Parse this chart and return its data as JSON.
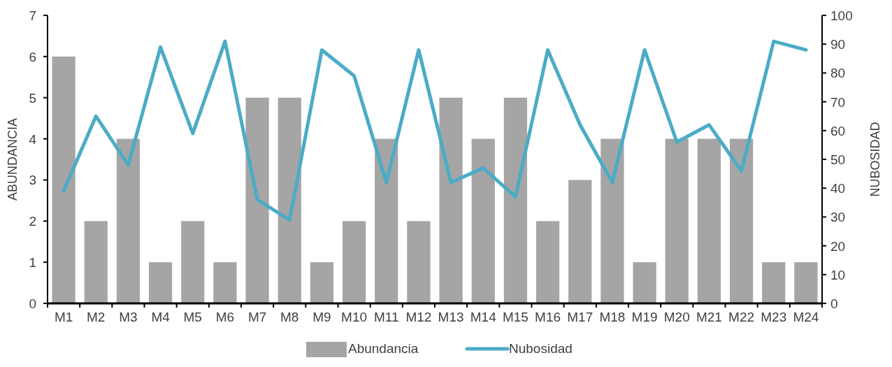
{
  "chart_data": {
    "type": "bar",
    "categories": [
      "M1",
      "M2",
      "M3",
      "M4",
      "M5",
      "M6",
      "M7",
      "M8",
      "M9",
      "M10",
      "M11",
      "M12",
      "M13",
      "M14",
      "M15",
      "M16",
      "M17",
      "M18",
      "M19",
      "M20",
      "M21",
      "M22",
      "M23",
      "M24"
    ],
    "series": [
      {
        "name": "Abundancia",
        "color": "#a5a5a5",
        "values": [
          6,
          2,
          4,
          1,
          2,
          1,
          5,
          5,
          1,
          2,
          4,
          2,
          5,
          4,
          5,
          2,
          3,
          4,
          1,
          4,
          4,
          4,
          1,
          1
        ]
      },
      {
        "name": "Nubosidad",
        "type": "line",
        "axis": "y2",
        "color": "#4bacc6",
        "values": [
          39,
          65,
          48,
          89,
          59,
          91,
          36,
          29,
          88,
          79,
          42,
          88,
          42,
          47,
          37,
          88,
          62,
          42,
          88,
          56,
          62,
          46,
          91,
          88
        ]
      }
    ],
    "ylabel": "ABUNDANCIA",
    "y2label": "NUBOSIDAD",
    "ylim": [
      0,
      7
    ],
    "yticks": [
      0,
      1,
      2,
      3,
      4,
      5,
      6,
      7
    ],
    "y2lim": [
      0,
      100
    ],
    "y2ticks": [
      0,
      10,
      20,
      30,
      40,
      50,
      60,
      70,
      80,
      90,
      100
    ],
    "legend": "bottom",
    "grid": false
  }
}
